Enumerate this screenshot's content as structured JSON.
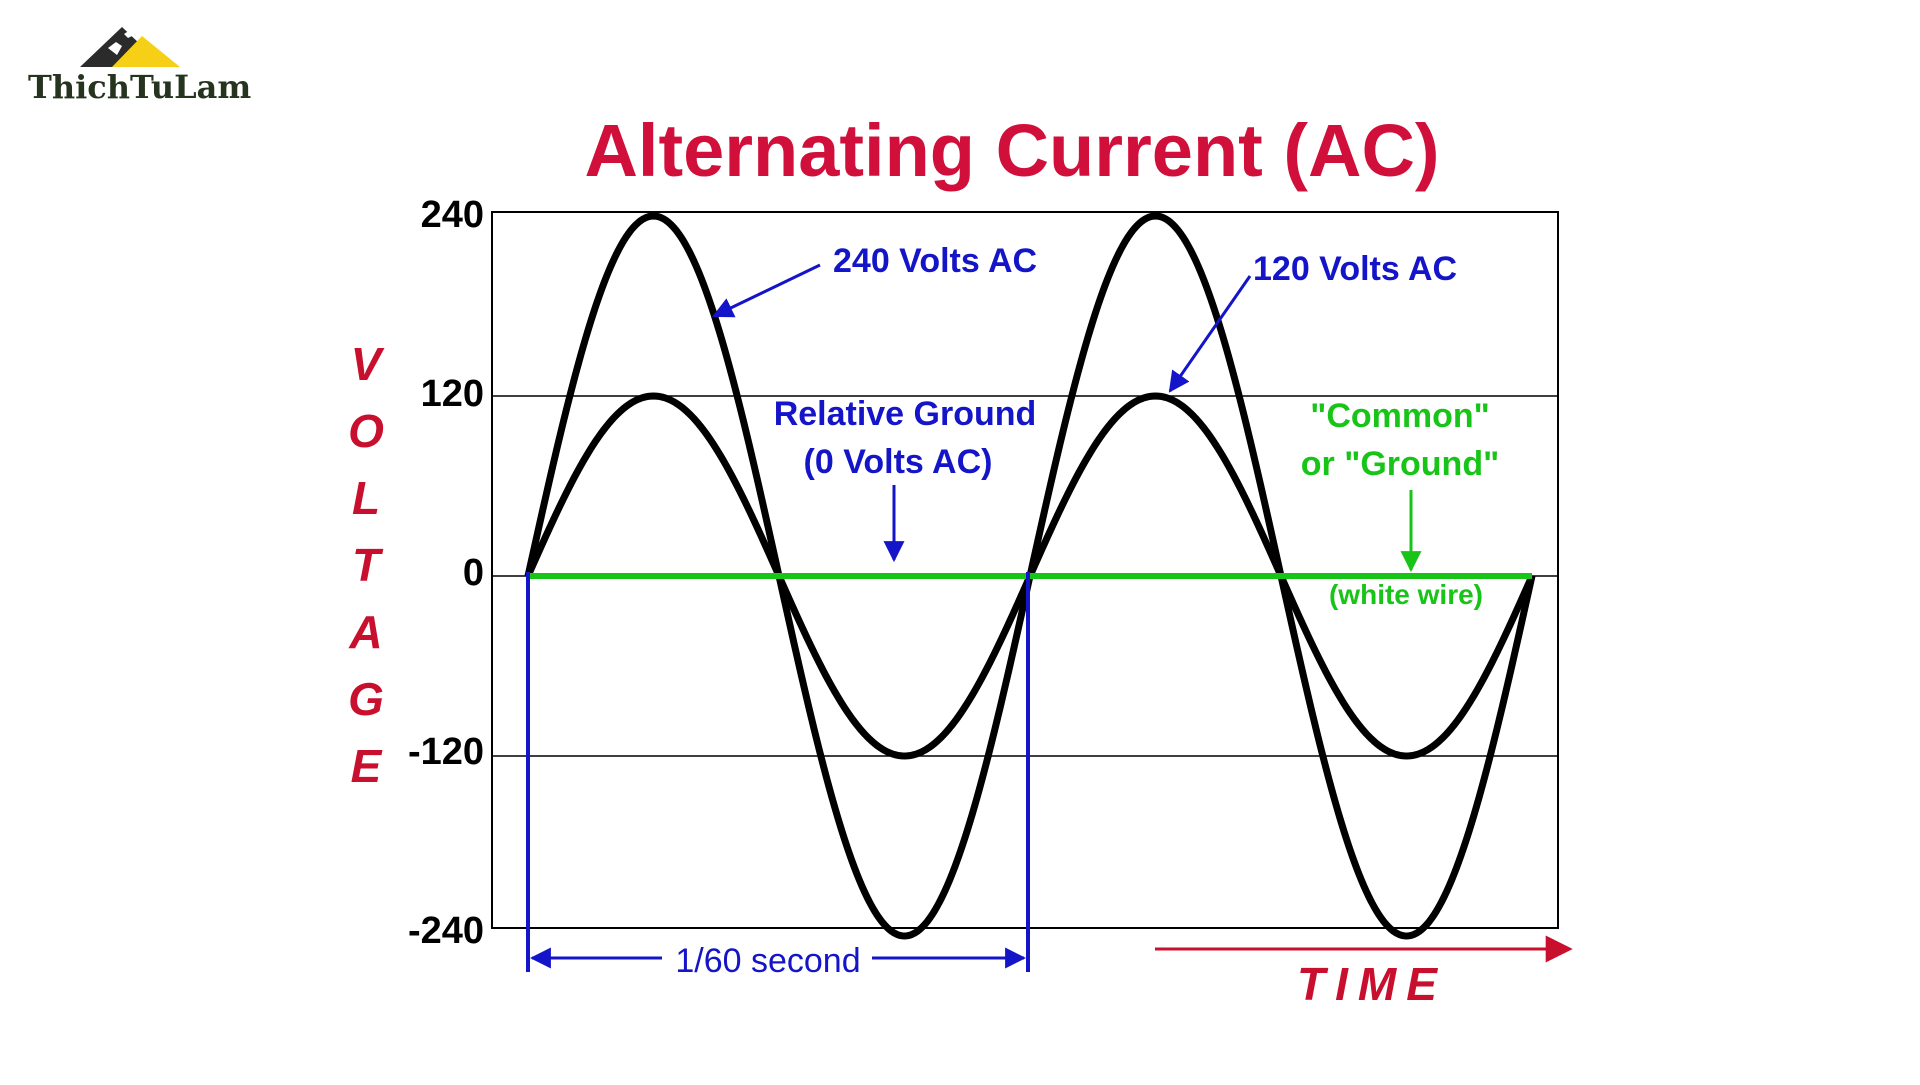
{
  "brand": {
    "name": "ThichTuLam",
    "colors": {
      "dark": "#2b2b2b",
      "yellow": "#f5d017",
      "text": "#26331f"
    }
  },
  "chart_data": {
    "type": "line",
    "title": "Alternating Current (AC)",
    "ylabel": "VOLTAGE",
    "xlabel": "TIME",
    "ylim": [
      -240,
      240
    ],
    "y_ticks": [
      240,
      120,
      0,
      -120,
      -240
    ],
    "y_tick_labels": [
      "240",
      "120",
      "0",
      "-120",
      "-240"
    ],
    "x_range_cycles": [
      0,
      2
    ],
    "grid": "horizontal",
    "series": [
      {
        "name": "240 Volts AC",
        "amplitude": 240,
        "cycles": 2,
        "color": "#000000"
      },
      {
        "name": "120 Volts AC",
        "amplitude": 120,
        "cycles": 2,
        "color": "#000000"
      },
      {
        "name": "Relative Ground",
        "amplitude": 0,
        "cycles": 2,
        "color": "#19c419"
      }
    ],
    "annotations": {
      "v240": "240 Volts AC",
      "v120": "120 Volts AC",
      "relative_ground_line1": "Relative Ground",
      "relative_ground_line2": "(0 Volts AC)",
      "common_line1": "\"Common\"",
      "common_line2": "or \"Ground\"",
      "white_wire": "(white wire)",
      "period": "1/60 second"
    },
    "colors": {
      "title": "#d0103a",
      "axis_label": "#c8102e",
      "annotation_blue": "#1414c8",
      "ground_green": "#19c419",
      "curve": "#000000",
      "grid": "#000000"
    }
  }
}
